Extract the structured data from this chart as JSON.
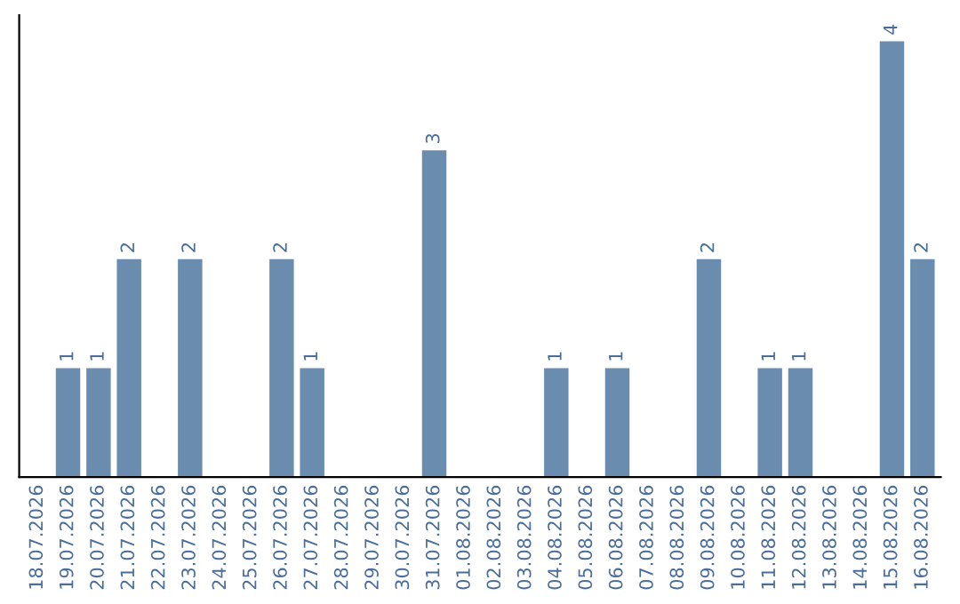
{
  "chart_data": {
    "type": "bar",
    "categories": [
      "18.07.2026",
      "19.07.2026",
      "20.07.2026",
      "21.07.2026",
      "22.07.2026",
      "23.07.2026",
      "24.07.2026",
      "25.07.2026",
      "26.07.2026",
      "27.07.2026",
      "28.07.2026",
      "29.07.2026",
      "30.07.2026",
      "31.07.2026",
      "01.08.2026",
      "02.08.2026",
      "03.08.2026",
      "04.08.2026",
      "05.08.2026",
      "06.08.2026",
      "07.08.2026",
      "08.08.2026",
      "09.08.2026",
      "10.08.2026",
      "11.08.2026",
      "12.08.2026",
      "13.08.2026",
      "14.08.2026",
      "15.08.2026",
      "16.08.2026"
    ],
    "values": [
      0,
      1,
      1,
      2,
      0,
      2,
      0,
      0,
      2,
      1,
      0,
      0,
      0,
      3,
      0,
      0,
      0,
      1,
      0,
      1,
      0,
      0,
      2,
      0,
      1,
      1,
      0,
      0,
      4,
      2
    ],
    "value_labels": [
      null,
      "1",
      "1",
      "2",
      null,
      "2",
      null,
      null,
      "2",
      "1",
      null,
      null,
      null,
      "3",
      null,
      null,
      null,
      "1",
      null,
      "1",
      null,
      null,
      "2",
      null,
      "1",
      "1",
      null,
      null,
      "4",
      "2"
    ],
    "color": "#6a8caf",
    "grid": false,
    "legend": false,
    "tick_labels": "x"
  }
}
